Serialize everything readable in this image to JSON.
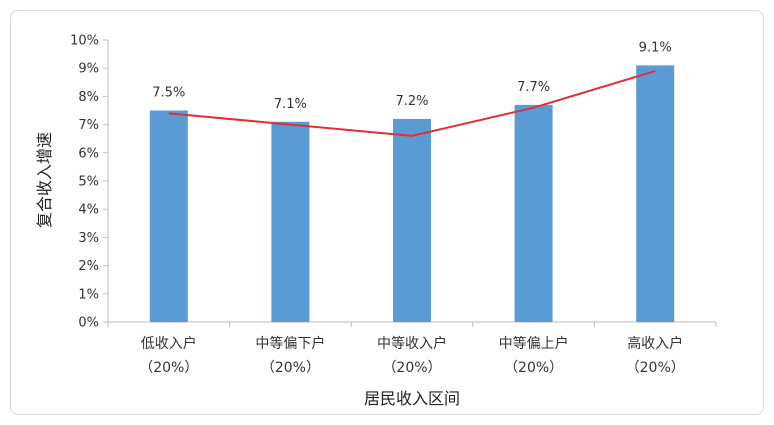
{
  "chart_data": {
    "type": "bar",
    "categories": [
      [
        "低收入户",
        "（20%）"
      ],
      [
        "中等偏下户",
        "（20%）"
      ],
      [
        "中等收入户",
        "（20%）"
      ],
      [
        "中等偏上户",
        "（20%）"
      ],
      [
        "高收入户",
        "（20%）"
      ]
    ],
    "values": [
      7.5,
      7.1,
      7.2,
      7.7,
      9.1
    ],
    "data_labels": [
      "7.5%",
      "7.1%",
      "7.2%",
      "7.7%",
      "9.1%"
    ],
    "line_overlay": [
      7.4,
      7.0,
      6.6,
      7.6,
      8.9
    ],
    "xlabel": "居民收入区间",
    "ylabel": "复合收入增速",
    "ylim": [
      0,
      10
    ],
    "yticks": [
      "0%",
      "1%",
      "2%",
      "3%",
      "4%",
      "5%",
      "6%",
      "7%",
      "8%",
      "9%",
      "10%"
    ],
    "grid": false,
    "colors": {
      "bar": "#5b9bd5",
      "line": "#e03030",
      "axis": "#bfbfbf"
    }
  }
}
